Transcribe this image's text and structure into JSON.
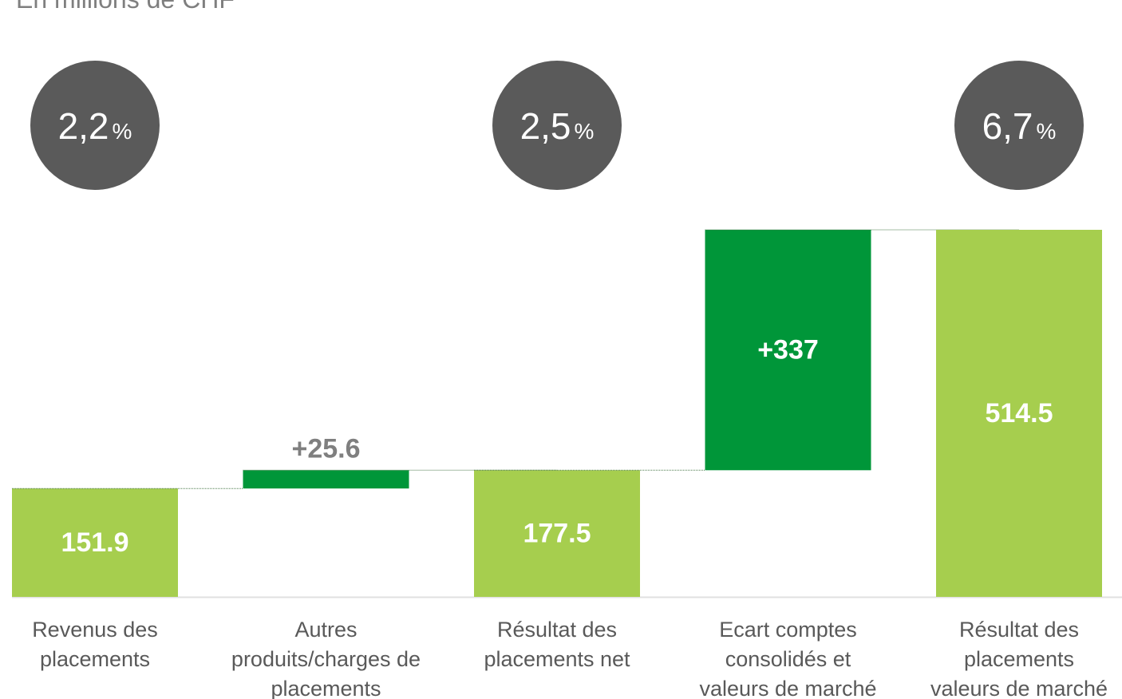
{
  "chart_data": {
    "type": "waterfall",
    "subtitle": "En millions de CHF",
    "categories": [
      "Revenus des\nplacements",
      "Autres\nproduits/charges de\nplacements",
      "Résultat des\nplacements net",
      "Ecart comptes\nconsolidés et\nvaleurs de marché",
      "Résultat des\nplacements\nvaleurs de marché"
    ],
    "values": [
      151.9,
      25.6,
      177.5,
      337,
      514.5
    ],
    "value_labels": [
      "151.9",
      "+25.6",
      "177.5",
      "+337",
      "514.5"
    ],
    "kinds": [
      "total",
      "delta",
      "total",
      "delta",
      "total"
    ],
    "colors": {
      "total": "#a6ce4e",
      "delta": "#009639"
    },
    "rates": [
      2.2,
      null,
      2.5,
      null,
      6.7
    ],
    "rate_labels": [
      "2,2",
      null,
      "2,5",
      null,
      "6,7"
    ],
    "rate_unit": "%",
    "ylim": [
      0,
      600
    ]
  }
}
